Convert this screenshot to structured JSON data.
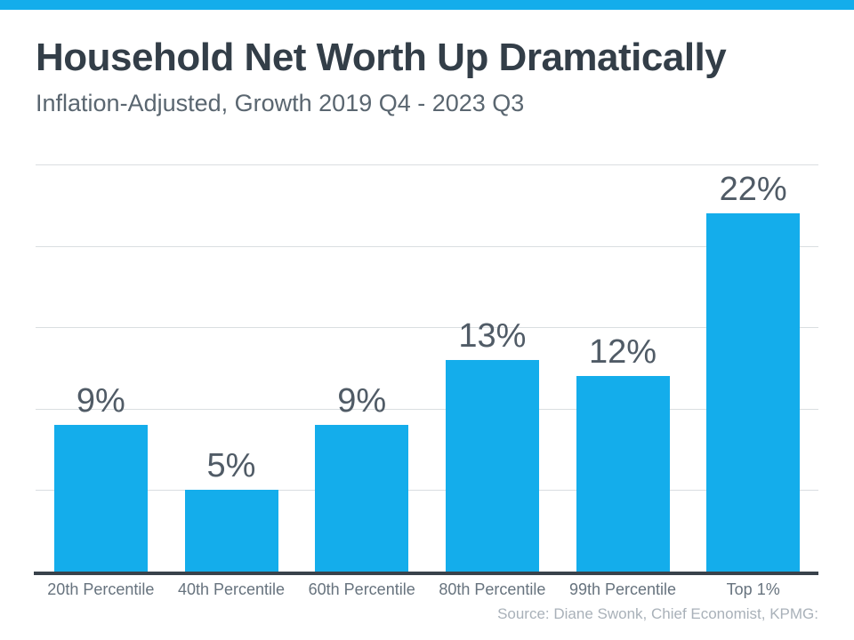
{
  "page": {
    "accent_color": "#14ADEB",
    "background_color": "#FFFFFF"
  },
  "header": {
    "title": "Household Net Worth Up Dramatically",
    "subtitle": "Inflation-Adjusted, Growth 2019 Q4 - 2023 Q3"
  },
  "chart_data": {
    "type": "bar",
    "title": "Household Net Worth Up Dramatically",
    "subtitle": "Inflation-Adjusted, Growth 2019 Q4 - 2023 Q3",
    "categories": [
      "20th Percentile",
      "40th Percentile",
      "60th Percentile",
      "80th Percentile",
      "99th Percentile",
      "Top 1%"
    ],
    "values": [
      9,
      5,
      9,
      13,
      12,
      22
    ],
    "value_labels": [
      "9%",
      "5%",
      "9%",
      "13%",
      "12%",
      "22%"
    ],
    "xlabel": "",
    "ylabel": "",
    "ylim": [
      0,
      25
    ],
    "gridline_step": 5,
    "grid": true,
    "legend_position": "none",
    "bar_color": "#14ADEB",
    "gridline_color": "#DADEE1",
    "axis_line_color": "#39424B",
    "value_label_color": "#505B66",
    "tick_label_color": "#67737E"
  },
  "footer": {
    "source": "Source: Diane Swonk, Chief Economist, KPMG:"
  }
}
